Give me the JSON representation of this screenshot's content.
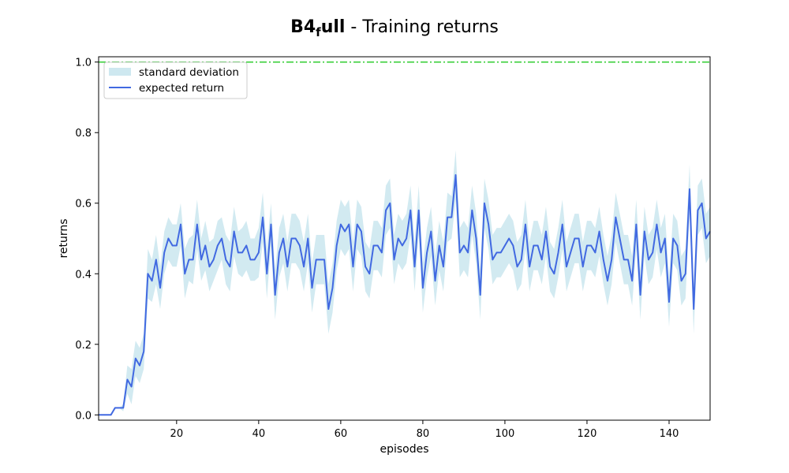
{
  "chart_data": {
    "type": "line",
    "title_main": "B4",
    "title_subscript": "f",
    "title_rest": "ull",
    "title_suffix": " - Training returns",
    "xlabel": "episodes",
    "ylabel": "returns",
    "xlim": [
      1,
      150
    ],
    "ylim": [
      -0.015,
      1.015
    ],
    "xticks": [
      20,
      40,
      60,
      80,
      100,
      120,
      140
    ],
    "yticks": [
      0.0,
      0.2,
      0.4,
      0.6,
      0.8,
      1.0
    ],
    "xtick_labels": [
      "20",
      "40",
      "60",
      "80",
      "100",
      "120",
      "140"
    ],
    "ytick_labels": [
      "0.0",
      "0.2",
      "0.4",
      "0.6",
      "0.8",
      "1.0"
    ],
    "grid": false,
    "legend_position": "top-left",
    "legend": {
      "std_label": "standard deviation",
      "mean_label": "expected return"
    },
    "colors": {
      "mean": "#4169e1",
      "std_fill": "#add8e6",
      "reference": "#32cd32"
    },
    "reference_line": {
      "y": 1.0,
      "style": "dash-dot"
    },
    "x": [
      1,
      2,
      3,
      4,
      5,
      6,
      7,
      8,
      9,
      10,
      11,
      12,
      13,
      14,
      15,
      16,
      17,
      18,
      19,
      20,
      21,
      22,
      23,
      24,
      25,
      26,
      27,
      28,
      29,
      30,
      31,
      32,
      33,
      34,
      35,
      36,
      37,
      38,
      39,
      40,
      41,
      42,
      43,
      44,
      45,
      46,
      47,
      48,
      49,
      50,
      51,
      52,
      53,
      54,
      55,
      56,
      57,
      58,
      59,
      60,
      61,
      62,
      63,
      64,
      65,
      66,
      67,
      68,
      69,
      70,
      71,
      72,
      73,
      74,
      75,
      76,
      77,
      78,
      79,
      80,
      81,
      82,
      83,
      84,
      85,
      86,
      87,
      88,
      89,
      90,
      91,
      92,
      93,
      94,
      95,
      96,
      97,
      98,
      99,
      100,
      101,
      102,
      103,
      104,
      105,
      106,
      107,
      108,
      109,
      110,
      111,
      112,
      113,
      114,
      115,
      116,
      117,
      118,
      119,
      120,
      121,
      122,
      123,
      124,
      125,
      126,
      127,
      128,
      129,
      130,
      131,
      132,
      133,
      134,
      135,
      136,
      137,
      138,
      139,
      140,
      141,
      142,
      143,
      144,
      145,
      146,
      147,
      148,
      149,
      150
    ],
    "series": [
      {
        "name": "expected return",
        "values": [
          0.0,
          0.0,
          0.0,
          0.0,
          0.02,
          0.02,
          0.02,
          0.1,
          0.08,
          0.16,
          0.14,
          0.18,
          0.4,
          0.38,
          0.44,
          0.36,
          0.46,
          0.5,
          0.48,
          0.48,
          0.54,
          0.4,
          0.44,
          0.44,
          0.54,
          0.44,
          0.48,
          0.42,
          0.44,
          0.48,
          0.5,
          0.44,
          0.42,
          0.52,
          0.46,
          0.46,
          0.48,
          0.44,
          0.44,
          0.46,
          0.56,
          0.4,
          0.54,
          0.34,
          0.46,
          0.5,
          0.42,
          0.5,
          0.5,
          0.48,
          0.42,
          0.5,
          0.36,
          0.44,
          0.44,
          0.44,
          0.3,
          0.36,
          0.48,
          0.54,
          0.52,
          0.54,
          0.42,
          0.54,
          0.52,
          0.42,
          0.4,
          0.48,
          0.48,
          0.46,
          0.58,
          0.6,
          0.44,
          0.5,
          0.48,
          0.5,
          0.58,
          0.42,
          0.58,
          0.36,
          0.46,
          0.52,
          0.38,
          0.48,
          0.42,
          0.56,
          0.56,
          0.68,
          0.46,
          0.48,
          0.46,
          0.58,
          0.5,
          0.34,
          0.6,
          0.54,
          0.44,
          0.46,
          0.46,
          0.48,
          0.5,
          0.48,
          0.42,
          0.44,
          0.54,
          0.42,
          0.48,
          0.48,
          0.44,
          0.52,
          0.42,
          0.4,
          0.46,
          0.54,
          0.42,
          0.46,
          0.5,
          0.5,
          0.42,
          0.48,
          0.48,
          0.46,
          0.52,
          0.44,
          0.38,
          0.44,
          0.56,
          0.5,
          0.44,
          0.44,
          0.38,
          0.54,
          0.34,
          0.52,
          0.44,
          0.46,
          0.54,
          0.46,
          0.5,
          0.32,
          0.5,
          0.48,
          0.38,
          0.4,
          0.64,
          0.3,
          0.58,
          0.6,
          0.5,
          0.52
        ]
      }
    ],
    "std": [
      0.0,
      0.0,
      0.0,
      0.0,
      0.0,
      0.0,
      0.01,
      0.04,
      0.05,
      0.05,
      0.05,
      0.05,
      0.07,
      0.06,
      0.07,
      0.06,
      0.06,
      0.06,
      0.06,
      0.06,
      0.06,
      0.07,
      0.06,
      0.07,
      0.07,
      0.06,
      0.07,
      0.07,
      0.06,
      0.07,
      0.06,
      0.07,
      0.07,
      0.07,
      0.06,
      0.07,
      0.07,
      0.06,
      0.06,
      0.07,
      0.07,
      0.07,
      0.06,
      0.07,
      0.07,
      0.07,
      0.07,
      0.07,
      0.07,
      0.07,
      0.07,
      0.07,
      0.07,
      0.07,
      0.07,
      0.07,
      0.07,
      0.07,
      0.07,
      0.07,
      0.07,
      0.07,
      0.07,
      0.07,
      0.07,
      0.07,
      0.07,
      0.07,
      0.07,
      0.07,
      0.07,
      0.07,
      0.07,
      0.07,
      0.07,
      0.07,
      0.07,
      0.07,
      0.07,
      0.07,
      0.07,
      0.07,
      0.07,
      0.07,
      0.07,
      0.07,
      0.06,
      0.07,
      0.07,
      0.07,
      0.07,
      0.07,
      0.07,
      0.07,
      0.07,
      0.07,
      0.07,
      0.07,
      0.07,
      0.07,
      0.07,
      0.07,
      0.07,
      0.07,
      0.07,
      0.07,
      0.07,
      0.07,
      0.07,
      0.07,
      0.07,
      0.07,
      0.07,
      0.07,
      0.07,
      0.07,
      0.07,
      0.07,
      0.07,
      0.07,
      0.07,
      0.07,
      0.07,
      0.07,
      0.07,
      0.07,
      0.07,
      0.07,
      0.07,
      0.07,
      0.07,
      0.07,
      0.07,
      0.07,
      0.07,
      0.07,
      0.07,
      0.07,
      0.07,
      0.07,
      0.07,
      0.07,
      0.07,
      0.07,
      0.07,
      0.07,
      0.07,
      0.07,
      0.07,
      0.07
    ]
  }
}
